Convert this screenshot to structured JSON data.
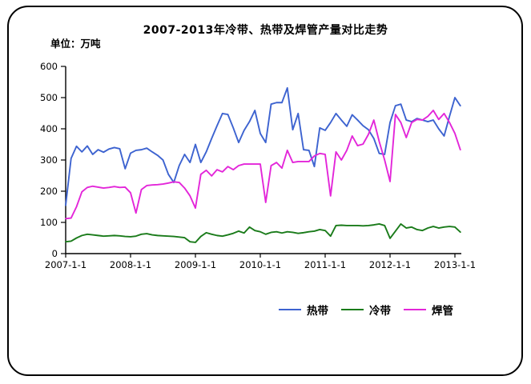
{
  "title": "2007-2013年冷带、热带及焊管产量对比走势",
  "unit_label": "单位：万吨",
  "chart_data": {
    "type": "line",
    "title": "2007-2013年冷带、热带及焊管产量对比走势",
    "ylabel": "单位：万吨",
    "ylim": [
      0,
      600
    ],
    "y_ticks": [
      "0",
      "100",
      "200",
      "300",
      "400",
      "500",
      "600"
    ],
    "x_tick_labels": [
      "2007-1-1",
      "2008-1-1",
      "2009-1-1",
      "2010-1-1",
      "2011-1-1",
      "2012-1-1",
      "2013-1-1"
    ],
    "grid": false,
    "legend_position": "bottom",
    "x_start_month": "2007-01",
    "x_interval": "monthly",
    "series": [
      {
        "name": "热带",
        "color": "#3D63D0",
        "values": [
          155,
          305,
          344,
          326,
          345,
          318,
          333,
          325,
          335,
          340,
          336,
          272,
          322,
          331,
          333,
          338,
          326,
          315,
          300,
          254,
          228,
          282,
          318,
          292,
          350,
          292,
          326,
          369,
          410,
          449,
          446,
          403,
          356,
          395,
          423,
          459,
          385,
          356,
          479,
          484,
          484,
          531,
          397,
          449,
          333,
          331,
          279,
          403,
          395,
          420,
          449,
          428,
          408,
          445,
          428,
          410,
          397,
          369,
          321,
          318,
          420,
          474,
          479,
          428,
          423,
          433,
          428,
          423,
          428,
          400,
          377,
          440,
          500,
          474
        ]
      },
      {
        "name": "冷带",
        "color": "#1A7B1A",
        "values": [
          38,
          40,
          50,
          58,
          62,
          60,
          58,
          56,
          57,
          58,
          57,
          55,
          54,
          56,
          62,
          64,
          60,
          58,
          57,
          56,
          55,
          53,
          51,
          38,
          36,
          55,
          67,
          62,
          58,
          56,
          60,
          65,
          72,
          66,
          85,
          74,
          70,
          62,
          68,
          70,
          66,
          70,
          68,
          65,
          67,
          70,
          72,
          77,
          74,
          56,
          90,
          91,
          90,
          90,
          90,
          89,
          90,
          92,
          95,
          90,
          49,
          72,
          95,
          82,
          85,
          77,
          74,
          82,
          87,
          82,
          85,
          87,
          85,
          69
        ]
      },
      {
        "name": "焊管",
        "color": "#E326D9",
        "values": [
          112,
          114,
          150,
          198,
          212,
          216,
          213,
          210,
          212,
          215,
          212,
          213,
          195,
          130,
          205,
          218,
          220,
          221,
          223,
          226,
          230,
          228,
          210,
          185,
          146,
          254,
          267,
          249,
          269,
          262,
          279,
          269,
          282,
          287,
          287,
          287,
          287,
          164,
          282,
          292,
          274,
          331,
          292,
          295,
          295,
          295,
          313,
          321,
          318,
          185,
          326,
          300,
          331,
          377,
          346,
          351,
          382,
          428,
          359,
          300,
          231,
          446,
          420,
          372,
          420,
          430,
          428,
          440,
          459,
          430,
          449,
          420,
          385,
          333
        ]
      }
    ]
  },
  "legend": {
    "items": [
      {
        "label": "热带",
        "color": "#3D63D0"
      },
      {
        "label": "冷带",
        "color": "#1A7B1A"
      },
      {
        "label": "焊管",
        "color": "#E326D9"
      }
    ]
  }
}
